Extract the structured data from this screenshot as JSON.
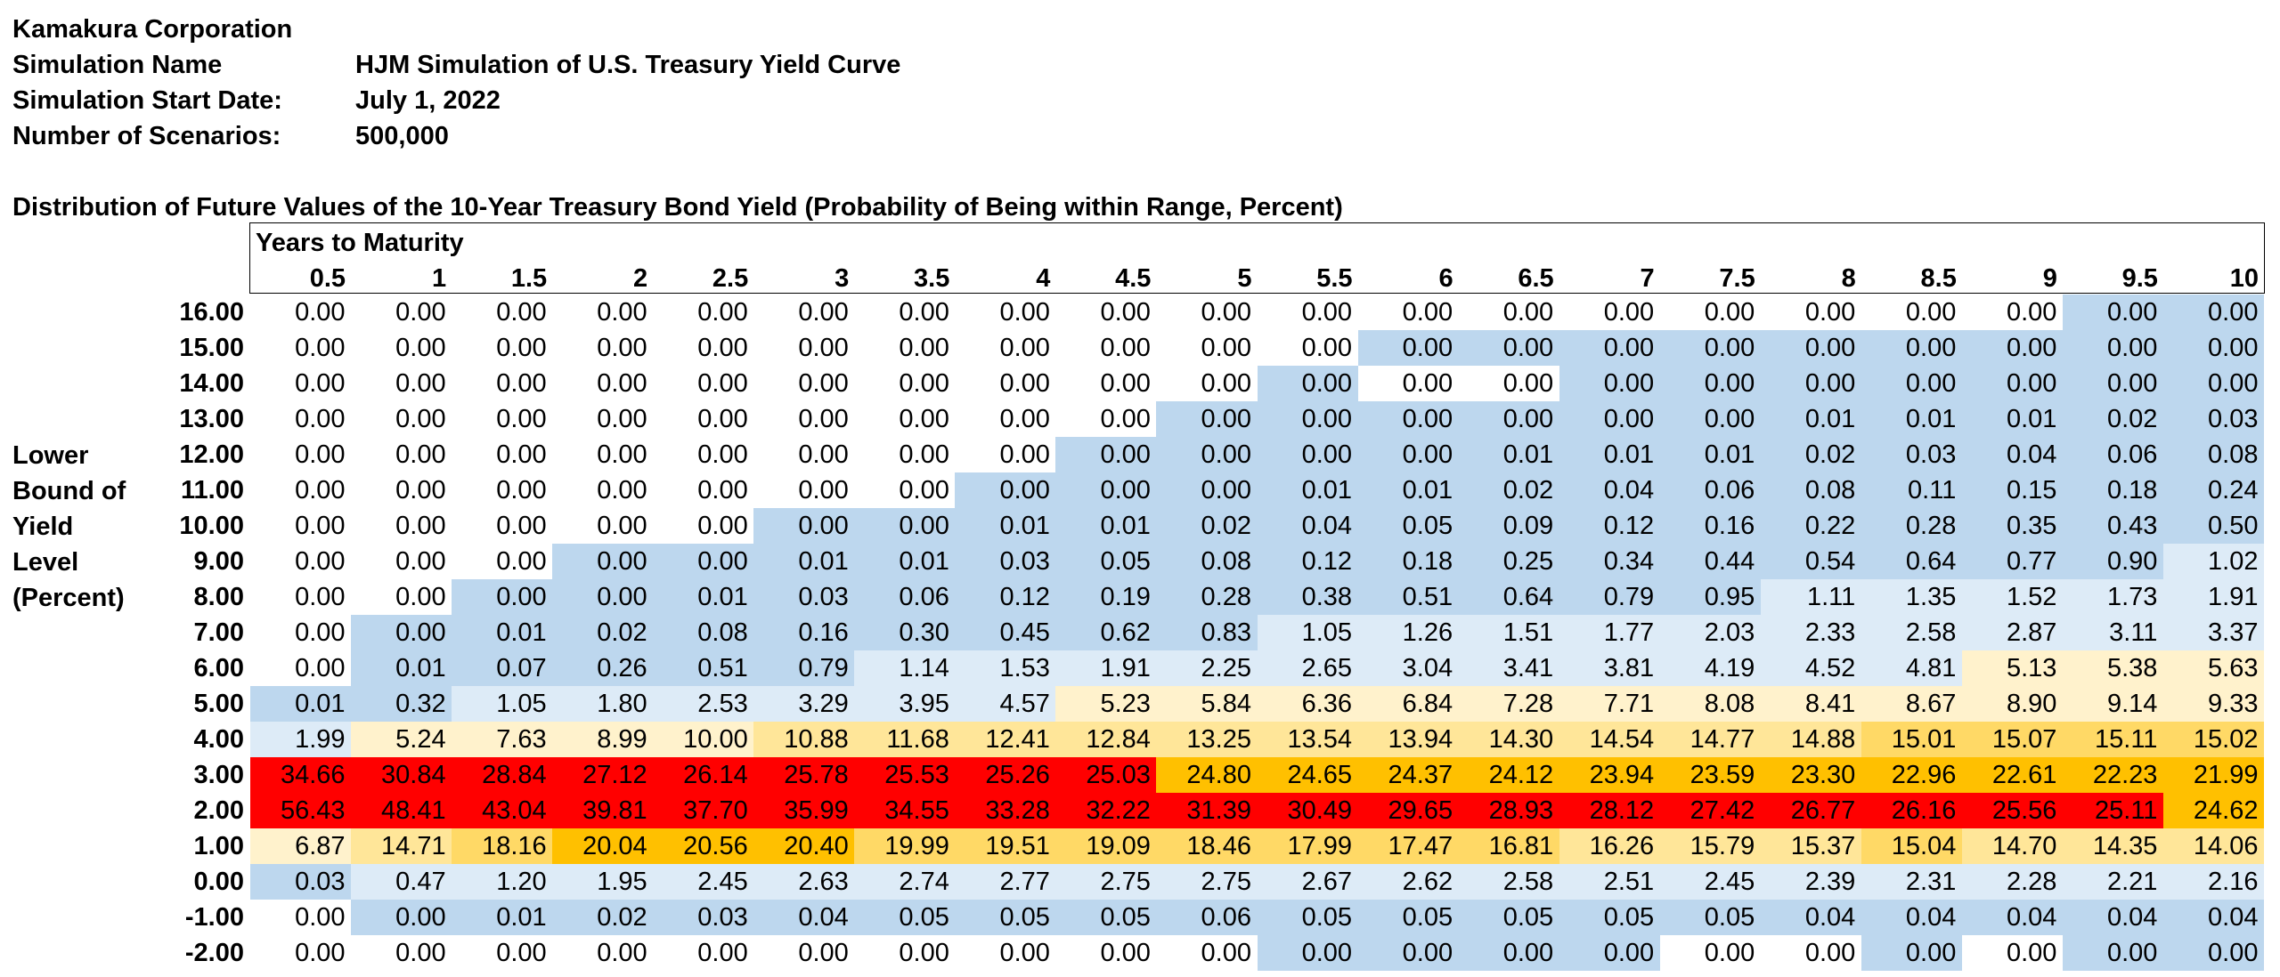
{
  "header": {
    "company": "Kamakura Corporation",
    "sim_name_label": "Simulation Name",
    "sim_name_value": "HJM Simulation of U.S. Treasury Yield Curve",
    "start_label": "Simulation Start Date:",
    "start_value": "July 1, 2022",
    "scenarios_label": "Number of Scenarios:",
    "scenarios_value": "500,000"
  },
  "table": {
    "title": "Distribution of Future Values of the 10-Year Treasury Bond Yield (Probability of Being within Range, Percent)",
    "col_group_label": "Years to Maturity",
    "row_axis_label": [
      "Lower",
      "Bound of",
      "Yield",
      "Level",
      "(Percent)"
    ],
    "columns": [
      "0.5",
      "1",
      "1.5",
      "2",
      "2.5",
      "3",
      "3.5",
      "4",
      "4.5",
      "5",
      "5.5",
      "6",
      "6.5",
      "7",
      "7.5",
      "8",
      "8.5",
      "9",
      "9.5",
      "10"
    ],
    "rows": [
      {
        "bound": "16.00",
        "values": [
          "0.00",
          "0.00",
          "0.00",
          "0.00",
          "0.00",
          "0.00",
          "0.00",
          "0.00",
          "0.00",
          "0.00",
          "0.00",
          "0.00",
          "0.00",
          "0.00",
          "0.00",
          "0.00",
          "0.00",
          "0.00",
          "0.00",
          "0.00"
        ],
        "fills": [
          "w",
          "w",
          "w",
          "w",
          "w",
          "w",
          "w",
          "w",
          "w",
          "w",
          "w",
          "w",
          "w",
          "w",
          "w",
          "w",
          "w",
          "w",
          "b",
          "b"
        ]
      },
      {
        "bound": "15.00",
        "values": [
          "0.00",
          "0.00",
          "0.00",
          "0.00",
          "0.00",
          "0.00",
          "0.00",
          "0.00",
          "0.00",
          "0.00",
          "0.00",
          "0.00",
          "0.00",
          "0.00",
          "0.00",
          "0.00",
          "0.00",
          "0.00",
          "0.00",
          "0.00"
        ],
        "fills": [
          "w",
          "w",
          "w",
          "w",
          "w",
          "w",
          "w",
          "w",
          "w",
          "w",
          "w",
          "b",
          "b",
          "b",
          "b",
          "b",
          "b",
          "b",
          "b",
          "b"
        ]
      },
      {
        "bound": "14.00",
        "values": [
          "0.00",
          "0.00",
          "0.00",
          "0.00",
          "0.00",
          "0.00",
          "0.00",
          "0.00",
          "0.00",
          "0.00",
          "0.00",
          "0.00",
          "0.00",
          "0.00",
          "0.00",
          "0.00",
          "0.00",
          "0.00",
          "0.00",
          "0.00"
        ],
        "fills": [
          "w",
          "w",
          "w",
          "w",
          "w",
          "w",
          "w",
          "w",
          "w",
          "w",
          "b",
          "w",
          "w",
          "b",
          "b",
          "b",
          "b",
          "b",
          "b",
          "b"
        ]
      },
      {
        "bound": "13.00",
        "values": [
          "0.00",
          "0.00",
          "0.00",
          "0.00",
          "0.00",
          "0.00",
          "0.00",
          "0.00",
          "0.00",
          "0.00",
          "0.00",
          "0.00",
          "0.00",
          "0.00",
          "0.00",
          "0.01",
          "0.01",
          "0.01",
          "0.02",
          "0.03"
        ],
        "fills": [
          "w",
          "w",
          "w",
          "w",
          "w",
          "w",
          "w",
          "w",
          "w",
          "b",
          "b",
          "b",
          "b",
          "b",
          "b",
          "b",
          "b",
          "b",
          "b",
          "b"
        ]
      },
      {
        "bound": "12.00",
        "values": [
          "0.00",
          "0.00",
          "0.00",
          "0.00",
          "0.00",
          "0.00",
          "0.00",
          "0.00",
          "0.00",
          "0.00",
          "0.00",
          "0.00",
          "0.01",
          "0.01",
          "0.01",
          "0.02",
          "0.03",
          "0.04",
          "0.06",
          "0.08"
        ],
        "fills": [
          "w",
          "w",
          "w",
          "w",
          "w",
          "w",
          "w",
          "w",
          "b",
          "b",
          "b",
          "b",
          "b",
          "b",
          "b",
          "b",
          "b",
          "b",
          "b",
          "b"
        ]
      },
      {
        "bound": "11.00",
        "values": [
          "0.00",
          "0.00",
          "0.00",
          "0.00",
          "0.00",
          "0.00",
          "0.00",
          "0.00",
          "0.00",
          "0.00",
          "0.01",
          "0.01",
          "0.02",
          "0.04",
          "0.06",
          "0.08",
          "0.11",
          "0.15",
          "0.18",
          "0.24"
        ],
        "fills": [
          "w",
          "w",
          "w",
          "w",
          "w",
          "w",
          "w",
          "b",
          "b",
          "b",
          "b",
          "b",
          "b",
          "b",
          "b",
          "b",
          "b",
          "b",
          "b",
          "b"
        ]
      },
      {
        "bound": "10.00",
        "values": [
          "0.00",
          "0.00",
          "0.00",
          "0.00",
          "0.00",
          "0.00",
          "0.00",
          "0.01",
          "0.01",
          "0.02",
          "0.04",
          "0.05",
          "0.09",
          "0.12",
          "0.16",
          "0.22",
          "0.28",
          "0.35",
          "0.43",
          "0.50"
        ],
        "fills": [
          "w",
          "w",
          "w",
          "w",
          "w",
          "b",
          "b",
          "b",
          "b",
          "b",
          "b",
          "b",
          "b",
          "b",
          "b",
          "b",
          "b",
          "b",
          "b",
          "b"
        ]
      },
      {
        "bound": "9.00",
        "values": [
          "0.00",
          "0.00",
          "0.00",
          "0.00",
          "0.00",
          "0.01",
          "0.01",
          "0.03",
          "0.05",
          "0.08",
          "0.12",
          "0.18",
          "0.25",
          "0.34",
          "0.44",
          "0.54",
          "0.64",
          "0.77",
          "0.90",
          "1.02"
        ],
        "fills": [
          "w",
          "w",
          "w",
          "b",
          "b",
          "b",
          "b",
          "b",
          "b",
          "b",
          "b",
          "b",
          "b",
          "b",
          "b",
          "b",
          "b",
          "b",
          "b",
          "l"
        ]
      },
      {
        "bound": "8.00",
        "values": [
          "0.00",
          "0.00",
          "0.00",
          "0.00",
          "0.01",
          "0.03",
          "0.06",
          "0.12",
          "0.19",
          "0.28",
          "0.38",
          "0.51",
          "0.64",
          "0.79",
          "0.95",
          "1.11",
          "1.35",
          "1.52",
          "1.73",
          "1.91"
        ],
        "fills": [
          "w",
          "w",
          "b",
          "b",
          "b",
          "b",
          "b",
          "b",
          "b",
          "b",
          "b",
          "b",
          "b",
          "b",
          "b",
          "l",
          "l",
          "l",
          "l",
          "l"
        ]
      },
      {
        "bound": "7.00",
        "values": [
          "0.00",
          "0.00",
          "0.01",
          "0.02",
          "0.08",
          "0.16",
          "0.30",
          "0.45",
          "0.62",
          "0.83",
          "1.05",
          "1.26",
          "1.51",
          "1.77",
          "2.03",
          "2.33",
          "2.58",
          "2.87",
          "3.11",
          "3.37"
        ],
        "fills": [
          "w",
          "b",
          "b",
          "b",
          "b",
          "b",
          "b",
          "b",
          "b",
          "b",
          "l",
          "l",
          "l",
          "l",
          "l",
          "l",
          "l",
          "l",
          "l",
          "l"
        ]
      },
      {
        "bound": "6.00",
        "values": [
          "0.00",
          "0.01",
          "0.07",
          "0.26",
          "0.51",
          "0.79",
          "1.14",
          "1.53",
          "1.91",
          "2.25",
          "2.65",
          "3.04",
          "3.41",
          "3.81",
          "4.19",
          "4.52",
          "4.81",
          "5.13",
          "5.38",
          "5.63"
        ],
        "fills": [
          "w",
          "b",
          "b",
          "b",
          "b",
          "b",
          "l",
          "l",
          "l",
          "l",
          "l",
          "l",
          "l",
          "l",
          "l",
          "l",
          "l",
          "c",
          "c",
          "c"
        ]
      },
      {
        "bound": "5.00",
        "values": [
          "0.01",
          "0.32",
          "1.05",
          "1.80",
          "2.53",
          "3.29",
          "3.95",
          "4.57",
          "5.23",
          "5.84",
          "6.36",
          "6.84",
          "7.28",
          "7.71",
          "8.08",
          "8.41",
          "8.67",
          "8.90",
          "9.14",
          "9.33"
        ],
        "fills": [
          "b",
          "b",
          "l",
          "l",
          "l",
          "l",
          "l",
          "l",
          "c",
          "c",
          "c",
          "c",
          "c",
          "c",
          "c",
          "c",
          "c",
          "c",
          "c",
          "c"
        ]
      },
      {
        "bound": "4.00",
        "values": [
          "1.99",
          "5.24",
          "7.63",
          "8.99",
          "10.00",
          "10.88",
          "11.68",
          "12.41",
          "12.84",
          "13.25",
          "13.54",
          "13.94",
          "14.30",
          "14.54",
          "14.77",
          "14.88",
          "15.01",
          "15.07",
          "15.11",
          "15.02"
        ],
        "fills": [
          "l",
          "c",
          "c",
          "c",
          "c",
          "y",
          "y",
          "y",
          "y",
          "y",
          "y",
          "y",
          "y",
          "y",
          "y",
          "y",
          "g",
          "g",
          "g",
          "g"
        ]
      },
      {
        "bound": "3.00",
        "values": [
          "34.66",
          "30.84",
          "28.84",
          "27.12",
          "26.14",
          "25.78",
          "25.53",
          "25.26",
          "25.03",
          "24.80",
          "24.65",
          "24.37",
          "24.12",
          "23.94",
          "23.59",
          "23.30",
          "22.96",
          "22.61",
          "22.23",
          "21.99"
        ],
        "fills": [
          "r",
          "r",
          "r",
          "r",
          "r",
          "r",
          "r",
          "r",
          "r",
          "o",
          "o",
          "o",
          "o",
          "o",
          "o",
          "o",
          "o",
          "o",
          "o",
          "o"
        ]
      },
      {
        "bound": "2.00",
        "values": [
          "56.43",
          "48.41",
          "43.04",
          "39.81",
          "37.70",
          "35.99",
          "34.55",
          "33.28",
          "32.22",
          "31.39",
          "30.49",
          "29.65",
          "28.93",
          "28.12",
          "27.42",
          "26.77",
          "26.16",
          "25.56",
          "25.11",
          "24.62"
        ],
        "fills": [
          "r",
          "r",
          "r",
          "r",
          "r",
          "r",
          "r",
          "r",
          "r",
          "r",
          "r",
          "r",
          "r",
          "r",
          "r",
          "r",
          "r",
          "r",
          "r",
          "o"
        ]
      },
      {
        "bound": "1.00",
        "values": [
          "6.87",
          "14.71",
          "18.16",
          "20.04",
          "20.56",
          "20.40",
          "19.99",
          "19.51",
          "19.09",
          "18.46",
          "17.99",
          "17.47",
          "16.81",
          "16.26",
          "15.79",
          "15.37",
          "15.04",
          "14.70",
          "14.35",
          "14.06"
        ],
        "fills": [
          "c",
          "y",
          "g",
          "o",
          "o",
          "o",
          "g",
          "g",
          "g",
          "g",
          "g",
          "g",
          "g",
          "y",
          "y",
          "y",
          "g",
          "y",
          "y",
          "y"
        ]
      },
      {
        "bound": "0.00",
        "values": [
          "0.03",
          "0.47",
          "1.20",
          "1.95",
          "2.45",
          "2.63",
          "2.74",
          "2.77",
          "2.75",
          "2.75",
          "2.67",
          "2.62",
          "2.58",
          "2.51",
          "2.45",
          "2.39",
          "2.31",
          "2.28",
          "2.21",
          "2.16"
        ],
        "fills": [
          "b",
          "l",
          "l",
          "l",
          "l",
          "l",
          "l",
          "l",
          "l",
          "l",
          "l",
          "l",
          "l",
          "l",
          "l",
          "l",
          "l",
          "l",
          "l",
          "l"
        ]
      },
      {
        "bound": "-1.00",
        "values": [
          "0.00",
          "0.00",
          "0.01",
          "0.02",
          "0.03",
          "0.04",
          "0.05",
          "0.05",
          "0.05",
          "0.06",
          "0.05",
          "0.05",
          "0.05",
          "0.05",
          "0.05",
          "0.04",
          "0.04",
          "0.04",
          "0.04",
          "0.04"
        ],
        "fills": [
          "w",
          "b",
          "b",
          "b",
          "b",
          "b",
          "b",
          "b",
          "b",
          "b",
          "b",
          "b",
          "b",
          "b",
          "b",
          "b",
          "b",
          "b",
          "b",
          "b"
        ]
      },
      {
        "bound": "-2.00",
        "values": [
          "0.00",
          "0.00",
          "0.00",
          "0.00",
          "0.00",
          "0.00",
          "0.00",
          "0.00",
          "0.00",
          "0.00",
          "0.00",
          "0.00",
          "0.00",
          "0.00",
          "0.00",
          "0.00",
          "0.00",
          "0.00",
          "0.00",
          "0.00"
        ],
        "fills": [
          "w",
          "w",
          "w",
          "w",
          "w",
          "w",
          "w",
          "w",
          "w",
          "w",
          "b",
          "b",
          "b",
          "b",
          "w",
          "w",
          "b",
          "w",
          "b",
          "b"
        ]
      }
    ],
    "fill_colors": {
      "w": "#ffffff",
      "b": "#bdd7ee",
      "l": "#ddebf7",
      "c": "#fff2cc",
      "y": "#ffe699",
      "g": "#ffd966",
      "o": "#ffc000",
      "r": "#ff0000"
    }
  }
}
